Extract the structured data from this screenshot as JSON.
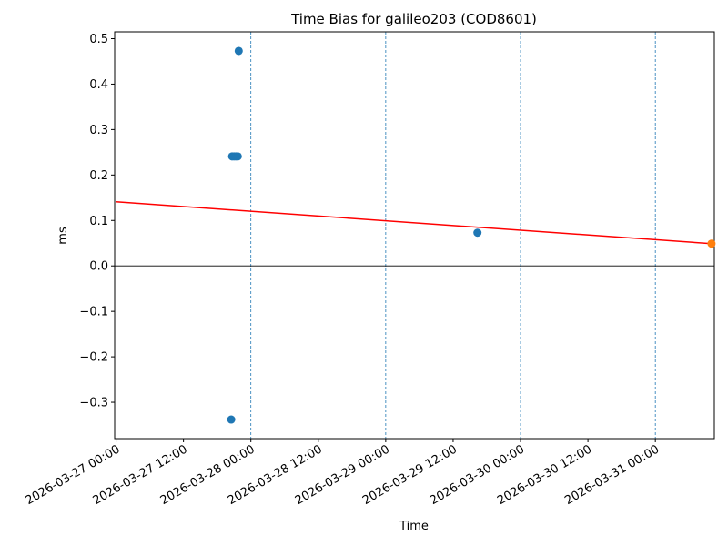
{
  "chart_data": {
    "type": "scatter",
    "title": "Time Bias for galileo203 (COD8601)",
    "xlabel": "Time",
    "ylabel": "ms",
    "x_type": "datetime",
    "xlim": [
      "2026-03-26 23:45",
      "2026-03-31 10:30"
    ],
    "ylim": [
      -0.38,
      0.515
    ],
    "yticks": [
      -0.3,
      -0.2,
      -0.1,
      0.0,
      0.1,
      0.2,
      0.3,
      0.4,
      0.5
    ],
    "ytick_labels": [
      "−0.3",
      "−0.2",
      "−0.1",
      "0.0",
      "0.1",
      "0.2",
      "0.3",
      "0.4",
      "0.5"
    ],
    "xticks": [
      "2026-03-27 00:00",
      "2026-03-27 12:00",
      "2026-03-28 00:00",
      "2026-03-28 12:00",
      "2026-03-29 00:00",
      "2026-03-29 12:00",
      "2026-03-30 00:00",
      "2026-03-30 12:00",
      "2026-03-31 00:00"
    ],
    "vlines": [
      "2026-03-27 00:00",
      "2026-03-28 00:00",
      "2026-03-29 00:00",
      "2026-03-30 00:00",
      "2026-03-31 00:00"
    ],
    "hline": 0.0,
    "series": [
      {
        "color": "#1f77b4",
        "points": [
          {
            "x": "2026-03-27 20:30",
            "y": -0.338
          },
          {
            "x": "2026-03-27 20:40",
            "y": 0.241
          },
          {
            "x": "2026-03-27 21:00",
            "y": 0.241
          },
          {
            "x": "2026-03-27 21:20",
            "y": 0.241
          },
          {
            "x": "2026-03-27 21:40",
            "y": 0.241
          },
          {
            "x": "2026-03-27 21:50",
            "y": 0.473
          },
          {
            "x": "2026-03-29 16:20",
            "y": 0.073
          }
        ]
      },
      {
        "color": "#ff7f0e",
        "points": [
          {
            "x": "2026-03-31 10:00",
            "y": 0.049
          }
        ]
      }
    ],
    "fit_line": {
      "color": "#ff0000",
      "start": {
        "x": "2026-03-27 00:00",
        "y": 0.141
      },
      "end": {
        "x": "2026-03-31 10:00",
        "y": 0.049
      }
    }
  }
}
